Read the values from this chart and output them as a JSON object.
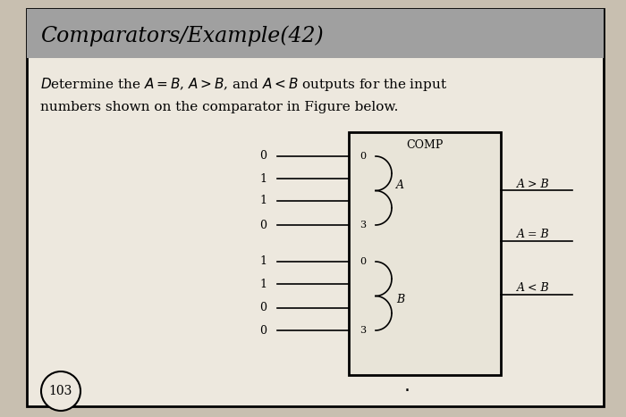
{
  "title": "Comparators/Example(42)",
  "title_bg": "#a0a0a0",
  "page_bg": "#c8bfb0",
  "content_bg": "#ede8de",
  "body_text_line1": "Determine the $A = B$, $A$>$B$, and $A < B$ outputs for the input",
  "body_text_line2": "numbers shown on the comparator in Figure below.",
  "page_number": "103",
  "comp_label": "COMP",
  "input_A_bits": [
    "0",
    "1",
    "1",
    "0"
  ],
  "input_B_bits": [
    "1",
    "1",
    "0",
    "0"
  ],
  "output_labels": [
    "A > B",
    "A = B",
    "A < B"
  ]
}
